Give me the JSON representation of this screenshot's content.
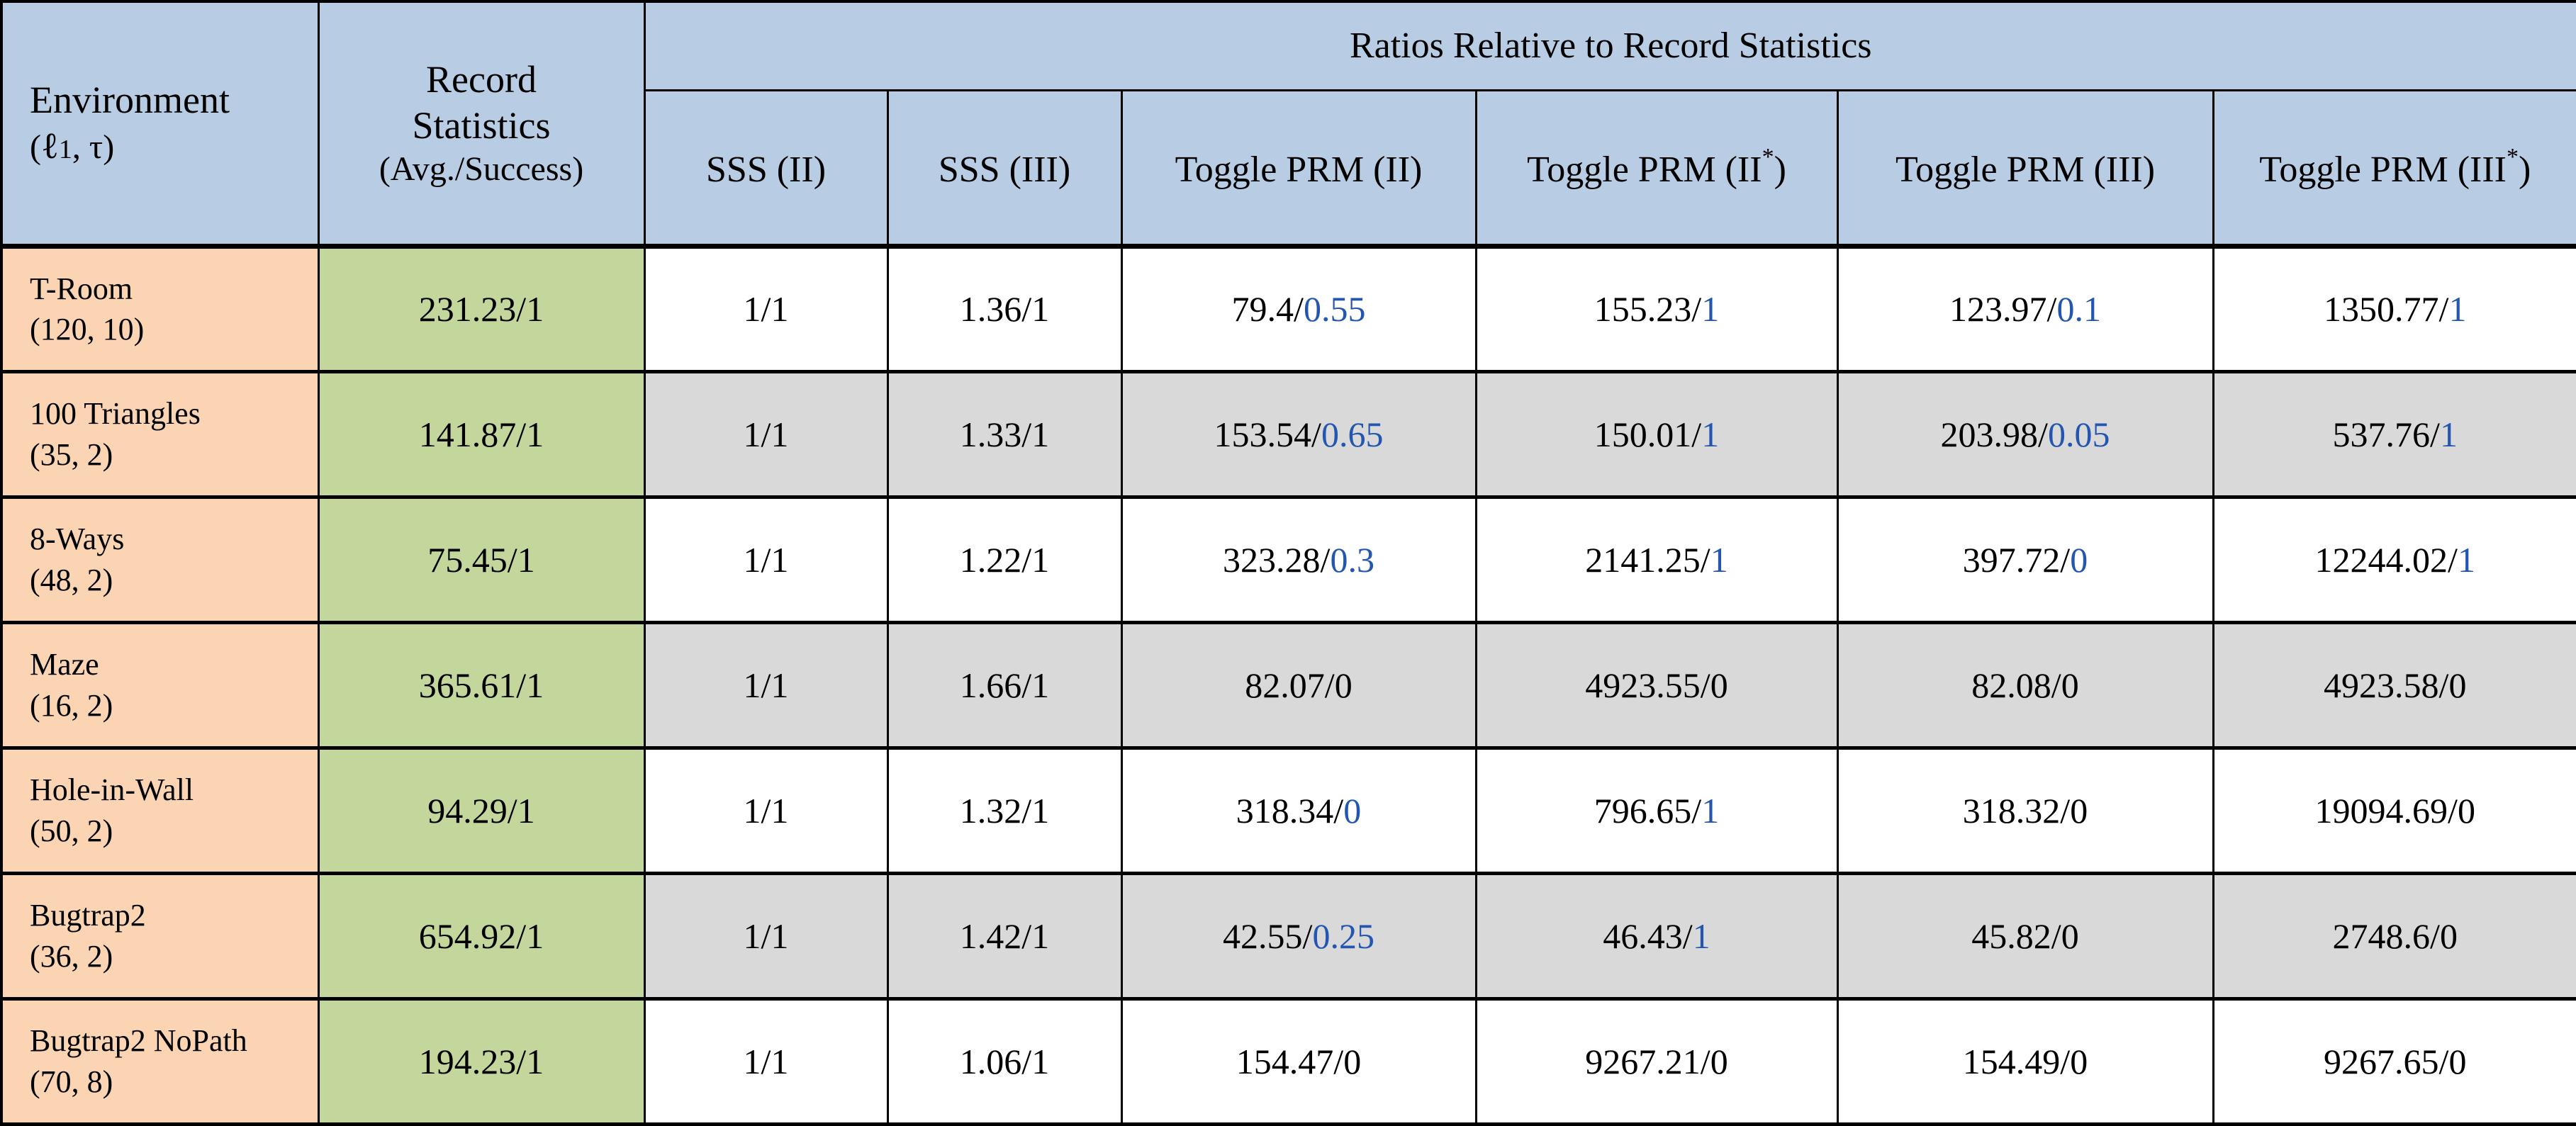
{
  "colors": {
    "header_blue": "#b8cce4",
    "environment_orange": "#fbd4b4",
    "record_green": "#c3d69b",
    "shaded_row_gray": "#d9d9d9",
    "highlight_blue_text": "#2256b0",
    "border_black": "#000000"
  },
  "table": {
    "header": {
      "environment": {
        "title": "Environment",
        "param_prefix": "(",
        "param_script": "ℓ",
        "param_sub": "1",
        "param_suffix": ", τ)"
      },
      "record": {
        "line1": "Record",
        "line2": "Statistics",
        "line3": "(Avg./Success)"
      },
      "ratios_title": "Ratios Relative to Record Statistics",
      "columns": [
        {
          "pre": "SSS (II)",
          "sup": "",
          "post": ""
        },
        {
          "pre": "SSS (III)",
          "sup": "",
          "post": ""
        },
        {
          "pre": "Toggle PRM (II)",
          "sup": "",
          "post": ""
        },
        {
          "pre": "Toggle PRM (II",
          "sup": "*",
          "post": ")"
        },
        {
          "pre": "Toggle PRM (III)",
          "sup": "",
          "post": ""
        },
        {
          "pre": "Toggle PRM (III",
          "sup": "*",
          "post": ")"
        }
      ]
    },
    "rows": [
      {
        "env": "T-Room",
        "params": "(120, 10)",
        "record": "231.23/1",
        "cells": [
          {
            "black": "1/1"
          },
          {
            "black": "1.36/1"
          },
          {
            "black": "79.4/",
            "blue": "0.55"
          },
          {
            "black": "155.23/",
            "blue": "1"
          },
          {
            "black": "123.97/",
            "blue": "0.1"
          },
          {
            "black": "1350.77/",
            "blue": "1"
          }
        ]
      },
      {
        "env": "100 Triangles",
        "params": "(35, 2)",
        "record": "141.87/1",
        "cells": [
          {
            "black": "1/1"
          },
          {
            "black": "1.33/1"
          },
          {
            "black": "153.54/",
            "blue": "0.65"
          },
          {
            "black": "150.01/",
            "blue": "1"
          },
          {
            "black": "203.98/",
            "blue": "0.05"
          },
          {
            "black": "537.76/",
            "blue": "1"
          }
        ]
      },
      {
        "env": "8-Ways",
        "params": "(48, 2)",
        "record": "75.45/1",
        "cells": [
          {
            "black": "1/1"
          },
          {
            "black": "1.22/1"
          },
          {
            "black": "323.28/",
            "blue": "0.3"
          },
          {
            "black": "2141.25/",
            "blue": "1"
          },
          {
            "black": "397.72/",
            "blue": "0"
          },
          {
            "black": "12244.02/",
            "blue": "1"
          }
        ]
      },
      {
        "env": "Maze",
        "params": "(16, 2)",
        "record": "365.61/1",
        "cells": [
          {
            "black": "1/1"
          },
          {
            "black": "1.66/1"
          },
          {
            "black": "82.07/0"
          },
          {
            "black": "4923.55/0"
          },
          {
            "black": "82.08/0"
          },
          {
            "black": "4923.58/0"
          }
        ]
      },
      {
        "env": "Hole-in-Wall",
        "params": "(50, 2)",
        "record": "94.29/1",
        "cells": [
          {
            "black": "1/1"
          },
          {
            "black": "1.32/1"
          },
          {
            "black": "318.34/",
            "blue": "0"
          },
          {
            "black": "796.65/",
            "blue": "1"
          },
          {
            "black": "318.32/0"
          },
          {
            "black": "19094.69/0"
          }
        ]
      },
      {
        "env": "Bugtrap2",
        "params": "(36, 2)",
        "record": "654.92/1",
        "cells": [
          {
            "black": "1/1"
          },
          {
            "black": "1.42/1"
          },
          {
            "black": "42.55/",
            "blue": "0.25"
          },
          {
            "black": "46.43/",
            "blue": "1"
          },
          {
            "black": "45.82/0"
          },
          {
            "black": "2748.6/0"
          }
        ]
      },
      {
        "env": "Bugtrap2 NoPath",
        "params": "(70, 8)",
        "record": "194.23/1",
        "cells": [
          {
            "black": "1/1"
          },
          {
            "black": "1.06/1"
          },
          {
            "black": "154.47/0"
          },
          {
            "black": "9267.21/0"
          },
          {
            "black": "154.49/0"
          },
          {
            "black": "9267.65/0"
          }
        ]
      }
    ]
  }
}
